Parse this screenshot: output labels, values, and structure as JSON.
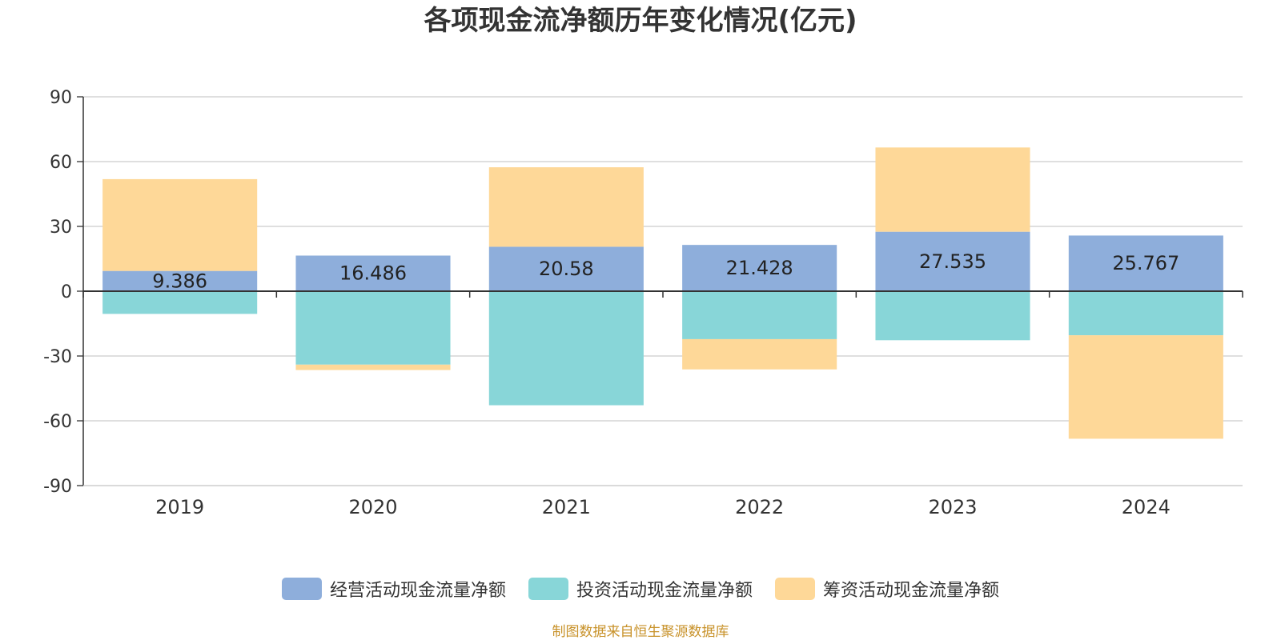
{
  "chart_data": {
    "type": "bar",
    "stacked": true,
    "title": "各项现金流净额历年变化情况(亿元)",
    "categories": [
      "2019",
      "2020",
      "2021",
      "2022",
      "2023",
      "2024"
    ],
    "series": [
      {
        "name": "经营活动现金流量净额",
        "color": "#8eaedb",
        "values": [
          9.386,
          16.486,
          20.58,
          21.428,
          27.535,
          25.767
        ],
        "show_labels": true
      },
      {
        "name": "投资活动现金流量净额",
        "color": "#88d6d8",
        "values": [
          -10.5,
          -34.0,
          -52.8,
          -22.2,
          -22.7,
          -20.4
        ]
      },
      {
        "name": "筹资活动现金流量净额",
        "color": "#fed898",
        "values": [
          42.5,
          -2.5,
          36.8,
          -14.0,
          39.0,
          -47.9
        ]
      }
    ],
    "ylim": [
      -90,
      90
    ],
    "yticks": [
      90,
      60,
      30,
      0,
      -30,
      -60,
      -90
    ],
    "xlabel": "",
    "ylabel": "",
    "grid": true,
    "legend_position": "bottom"
  },
  "source": "制图数据来自恒生聚源数据库"
}
